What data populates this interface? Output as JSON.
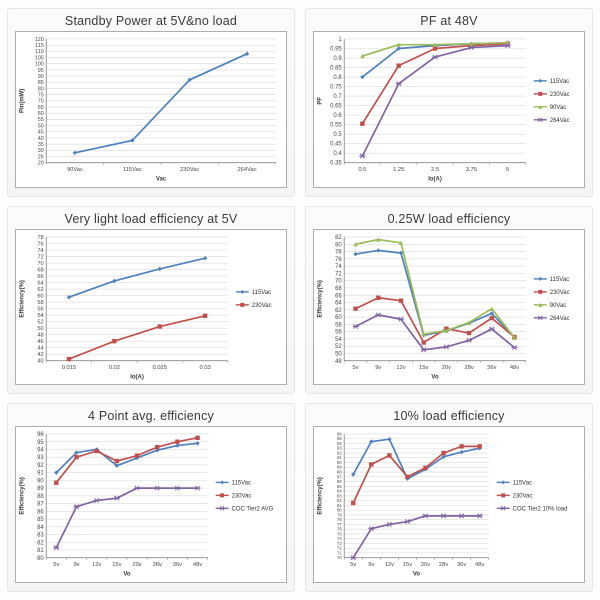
{
  "colors": {
    "blue": "#4F81BD",
    "red": "#C0504D",
    "green": "#9BBB59",
    "purple": "#8064A2",
    "gridline": "#d9d9d9",
    "axis": "#8c8c8c",
    "tick_text": "#474747",
    "title_text": "#3a3a3a"
  },
  "chart_data": [
    {
      "id": "standby-power",
      "type": "line",
      "title": "Standby Power at 5V&no load",
      "xlabel": "Vac",
      "ylabel": "Pin(mW)",
      "categories": [
        "90Vac",
        "115Vac",
        "230Vac",
        "264Vac"
      ],
      "ylim": [
        20,
        120
      ],
      "ystep": 5,
      "yticks": [
        "120",
        "115",
        "110",
        "105",
        "100",
        "95",
        "90",
        "85",
        "80",
        "75",
        "70",
        "65",
        "60",
        "55",
        "50",
        "45",
        "40",
        "35",
        "30",
        "25",
        "20"
      ],
      "grid": true,
      "legend": false,
      "series": [
        {
          "name": "",
          "color": "blue",
          "marker": "diamond",
          "values": [
            28,
            38,
            87,
            108
          ]
        }
      ]
    },
    {
      "id": "pf-48v",
      "type": "line",
      "title": "PF at 48V",
      "xlabel": "Io(A)",
      "ylabel": "PF",
      "categories": [
        "0.5",
        "1.25",
        "2.5",
        "3.75",
        "5"
      ],
      "ylim": [
        0.35,
        1
      ],
      "ystep": 0.05,
      "yticks": [
        "1",
        "0.95",
        "0.9",
        "0.85",
        "0.8",
        "0.75",
        "0.7",
        "0.65",
        "0.6",
        "0.55",
        "0.5",
        "0.45",
        "0.4",
        "0.35"
      ],
      "grid": true,
      "legend": true,
      "legend_position": "right",
      "series": [
        {
          "name": "115Vac",
          "color": "blue",
          "marker": "diamond",
          "values": [
            0.8,
            0.95,
            0.965,
            0.975,
            0.98
          ]
        },
        {
          "name": "230Vac",
          "color": "red",
          "marker": "square",
          "values": [
            0.555,
            0.86,
            0.95,
            0.965,
            0.975
          ]
        },
        {
          "name": "90Vac",
          "color": "green",
          "marker": "triangle",
          "values": [
            0.91,
            0.97,
            0.97,
            0.975,
            0.98
          ]
        },
        {
          "name": "264Vac",
          "color": "purple",
          "marker": "xcross",
          "values": [
            0.385,
            0.765,
            0.905,
            0.955,
            0.965
          ]
        }
      ]
    },
    {
      "id": "very-light-load-5v",
      "type": "line",
      "title": "Very light load efficiency at 5V",
      "xlabel": "Io(A)",
      "ylabel": "Efficiency(%)",
      "categories": [
        "0.015",
        "0.02",
        "0.025",
        "0.03"
      ],
      "ylim": [
        40,
        78
      ],
      "ystep": 2,
      "yticks": [
        "78",
        "76",
        "74",
        "72",
        "70",
        "68",
        "66",
        "64",
        "62",
        "60",
        "58",
        "56",
        "54",
        "52",
        "50",
        "48",
        "46",
        "44",
        "42",
        "40"
      ],
      "grid": true,
      "legend": true,
      "legend_position": "right",
      "series": [
        {
          "name": "115Vac",
          "color": "blue",
          "marker": "diamond",
          "values": [
            59.5,
            64.5,
            68.2,
            71.5
          ]
        },
        {
          "name": "230Vac",
          "color": "red",
          "marker": "square",
          "values": [
            40.5,
            46,
            50.5,
            53.8
          ]
        }
      ]
    },
    {
      "id": "quarter-watt-load",
      "type": "line",
      "title": "0.25W load efficiency",
      "xlabel": "Vo",
      "ylabel": "Efficiency(%)",
      "categories": [
        "5v",
        "9v",
        "12v",
        "15v",
        "20v",
        "28v",
        "36v",
        "48v"
      ],
      "ylim": [
        48,
        82
      ],
      "ystep": 2,
      "yticks": [
        "82",
        "80",
        "78",
        "76",
        "74",
        "72",
        "70",
        "68",
        "66",
        "64",
        "62",
        "60",
        "58",
        "56",
        "54",
        "52",
        "50",
        "48"
      ],
      "grid": true,
      "legend": true,
      "legend_position": "right",
      "series": [
        {
          "name": "115Vac",
          "color": "blue",
          "marker": "diamond",
          "values": [
            77.3,
            78.3,
            77.6,
            55,
            56.2,
            58.3,
            61,
            54.5
          ]
        },
        {
          "name": "230Vac",
          "color": "red",
          "marker": "square",
          "values": [
            62.3,
            65.3,
            64.5,
            53,
            56.8,
            55.6,
            59.7,
            54.5
          ]
        },
        {
          "name": "90Vac",
          "color": "green",
          "marker": "triangle",
          "values": [
            80,
            81.3,
            80.4,
            55.3,
            56.3,
            58.5,
            62.3,
            54.3
          ]
        },
        {
          "name": "264Vac",
          "color": "purple",
          "marker": "xcross",
          "values": [
            57.4,
            60.6,
            59.4,
            51,
            51.8,
            53.6,
            56.7,
            51.6
          ]
        }
      ]
    },
    {
      "id": "four-point-avg",
      "type": "line",
      "title": "4 Point avg. efficiency",
      "xlabel": "Vo",
      "ylabel": "Efficiency(%)",
      "categories": [
        "5v",
        "9v",
        "12v",
        "15v",
        "20v",
        "28v",
        "36v",
        "48v"
      ],
      "ylim": [
        80,
        96
      ],
      "ystep": 1,
      "yticks": [
        "96",
        "95",
        "94",
        "93",
        "92",
        "91",
        "90",
        "89",
        "88",
        "87",
        "86",
        "85",
        "84",
        "83",
        "82",
        "81",
        "80"
      ],
      "grid": true,
      "legend": true,
      "legend_position": "right",
      "series": [
        {
          "name": "115Vac",
          "color": "blue",
          "marker": "diamond",
          "values": [
            91,
            93.6,
            94,
            91.9,
            92.9,
            93.9,
            94.5,
            94.8
          ]
        },
        {
          "name": "230Vac",
          "color": "red",
          "marker": "square",
          "values": [
            89.7,
            93,
            93.8,
            92.5,
            93.2,
            94.3,
            95,
            95.5
          ]
        },
        {
          "name": "COC Tier2 AVG",
          "color": "purple",
          "marker": "xcross",
          "values": [
            81.3,
            86.6,
            87.4,
            87.7,
            89,
            89,
            89,
            89
          ]
        }
      ]
    },
    {
      "id": "ten-percent-load",
      "type": "line",
      "title": "10% load efficiency",
      "xlabel": "Vo",
      "ylabel": "Efficiency(%)",
      "categories": [
        "5v",
        "9v",
        "12v",
        "15v",
        "20v",
        "28v",
        "36v",
        "48v"
      ],
      "ylim": [
        70,
        96
      ],
      "ystep": 1,
      "yticks": [
        "96",
        "95",
        "94",
        "93",
        "92",
        "91",
        "90",
        "89",
        "88",
        "87",
        "86",
        "85",
        "84",
        "83",
        "82",
        "81",
        "80",
        "79",
        "78",
        "77",
        "76",
        "75",
        "74",
        "73",
        "72",
        "71",
        "70"
      ],
      "grid": true,
      "legend": true,
      "legend_position": "right",
      "series": [
        {
          "name": "115Vac",
          "color": "blue",
          "marker": "diamond",
          "values": [
            87.5,
            94.4,
            94.9,
            86.6,
            88.6,
            91.2,
            92.2,
            93
          ]
        },
        {
          "name": "230Vac",
          "color": "red",
          "marker": "square",
          "values": [
            81.5,
            89.6,
            91.5,
            87,
            88.9,
            92,
            93.4,
            93.4
          ]
        },
        {
          "name": "COC Tier2 10% load",
          "color": "purple",
          "marker": "xcross",
          "values": [
            70,
            76.1,
            77,
            77.6,
            78.8,
            78.8,
            78.8,
            78.8
          ]
        }
      ]
    }
  ]
}
